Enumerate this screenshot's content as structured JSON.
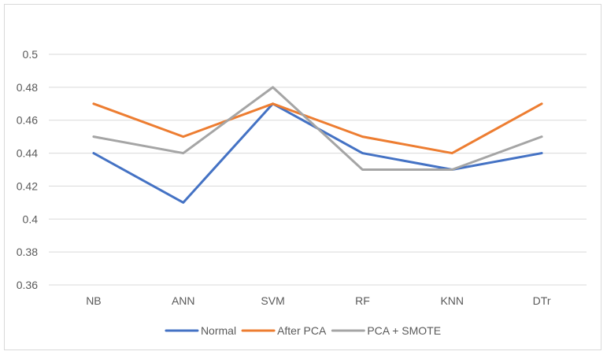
{
  "chart_data": {
    "type": "line",
    "title": "",
    "xlabel": "",
    "ylabel": "",
    "categories": [
      "NB",
      "ANN",
      "SVM",
      "RF",
      "KNN",
      "DTr"
    ],
    "ylim": [
      0.36,
      0.5
    ],
    "yticks": [
      "0.36",
      "0.38",
      "0.4",
      "0.42",
      "0.44",
      "0.46",
      "0.48",
      "0.5"
    ],
    "ytick_values": [
      0.36,
      0.38,
      0.4,
      0.42,
      0.44,
      0.46,
      0.48,
      0.5
    ],
    "grid": true,
    "legend_position": "bottom",
    "series": [
      {
        "name": "Normal",
        "color": "#4472C4",
        "values": [
          0.44,
          0.41,
          0.47,
          0.44,
          0.43,
          0.44
        ]
      },
      {
        "name": "After PCA",
        "color": "#ED7D31",
        "values": [
          0.47,
          0.45,
          0.47,
          0.45,
          0.44,
          0.47
        ]
      },
      {
        "name": "PCA + SMOTE",
        "color": "#A5A5A5",
        "values": [
          0.45,
          0.44,
          0.48,
          0.43,
          0.43,
          0.45
        ]
      }
    ]
  }
}
